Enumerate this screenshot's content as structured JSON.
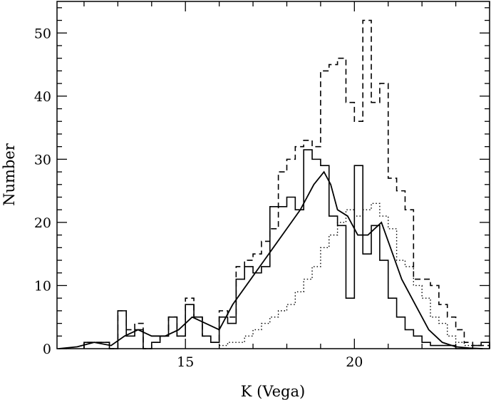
{
  "chart_data": {
    "type": "line",
    "title": "",
    "xlabel": "K (Vega)",
    "ylabel": "Number",
    "xlim": [
      11.2,
      24.0
    ],
    "ylim": [
      0,
      55
    ],
    "xticks": [
      15,
      20
    ],
    "yticks": [
      0,
      10,
      20,
      30,
      40,
      50
    ],
    "grid": false,
    "legend": "none",
    "bin_width": 0.25,
    "series": [
      {
        "style": "histogram-solid",
        "bin_edges": [
          12.0,
          12.25,
          12.5,
          12.75,
          13.0,
          13.25,
          13.5,
          13.75,
          14.0,
          14.25,
          14.5,
          14.75,
          15.0,
          15.25,
          15.5,
          15.75,
          16.0,
          16.25,
          16.5,
          16.75,
          17.0,
          17.25,
          17.5,
          17.75,
          18.0,
          18.25,
          18.5,
          18.75,
          19.0,
          19.25,
          19.5,
          19.75,
          20.0,
          20.25,
          20.5,
          20.75,
          21.0,
          21.25,
          21.5,
          21.75,
          22.0,
          22.25,
          22.5,
          22.75,
          23.0,
          23.25,
          23.5,
          23.75,
          24.0
        ],
        "values": [
          1,
          1,
          1,
          0,
          6,
          2,
          3,
          0,
          1,
          2,
          5,
          2,
          7,
          5,
          2,
          1,
          5,
          4,
          11,
          13,
          12,
          13,
          22.5,
          22.5,
          24,
          22,
          31.5,
          30,
          29,
          21,
          19.5,
          8,
          29,
          15,
          19.5,
          14,
          8,
          5,
          3,
          2,
          1,
          0.5,
          0.5,
          0.5,
          0,
          0,
          0.5,
          1
        ]
      },
      {
        "style": "histogram-dashed",
        "bin_edges": [
          12.0,
          12.25,
          12.5,
          12.75,
          13.0,
          13.25,
          13.5,
          13.75,
          14.0,
          14.25,
          14.5,
          14.75,
          15.0,
          15.25,
          15.5,
          15.75,
          16.0,
          16.25,
          16.5,
          16.75,
          17.0,
          17.25,
          17.5,
          17.75,
          18.0,
          18.25,
          18.5,
          18.75,
          19.0,
          19.25,
          19.5,
          19.75,
          20.0,
          20.25,
          20.5,
          20.75,
          21.0,
          21.25,
          21.5,
          21.75,
          22.0,
          22.25,
          22.5,
          22.75,
          23.0,
          23.25,
          23.5,
          23.75,
          24.0
        ],
        "values": [
          1,
          1,
          1,
          0,
          6,
          3,
          4,
          0,
          1,
          2,
          5,
          2,
          8,
          5,
          2,
          1,
          6,
          5,
          13,
          14,
          15,
          17,
          19,
          28,
          30,
          32,
          33,
          32,
          44,
          45,
          46,
          39,
          36,
          52,
          39,
          42,
          27,
          25,
          22,
          11,
          11,
          10,
          7,
          5,
          3,
          1,
          0.5,
          0.5
        ]
      },
      {
        "style": "histogram-dotted",
        "bin_edges": [
          16.0,
          16.25,
          16.5,
          16.75,
          17.0,
          17.25,
          17.5,
          17.75,
          18.0,
          18.25,
          18.5,
          18.75,
          19.0,
          19.25,
          19.5,
          19.75,
          20.0,
          20.25,
          20.5,
          20.75,
          21.0,
          21.25,
          21.5,
          21.75,
          22.0,
          22.25,
          22.5,
          22.75,
          23.0,
          23.25,
          23.5
        ],
        "values": [
          0.5,
          1,
          1,
          2,
          3,
          4,
          5,
          6,
          7,
          9,
          11,
          13,
          16,
          18,
          20,
          22,
          21,
          22,
          23,
          21,
          19,
          14,
          13,
          10,
          8,
          5,
          4,
          2,
          1,
          0.5
        ]
      },
      {
        "style": "curve-solid",
        "x": [
          11.25,
          11.8,
          12.3,
          12.8,
          13.2,
          13.6,
          14.0,
          14.4,
          14.8,
          15.2,
          15.6,
          16.0,
          16.4,
          16.8,
          17.2,
          17.6,
          18.0,
          18.4,
          18.8,
          19.1,
          19.3,
          19.5,
          19.8,
          20.1,
          20.4,
          20.8,
          21.0,
          21.4,
          21.8,
          22.2,
          22.6,
          23.0,
          23.4,
          23.8
        ],
        "y": [
          0,
          0.3,
          1,
          0.5,
          2,
          3,
          2,
          2,
          3,
          5,
          4,
          3,
          7,
          10,
          13,
          16,
          19,
          22,
          26,
          28,
          26,
          22,
          21,
          18,
          18,
          20,
          17,
          11,
          7,
          3,
          1,
          0.3,
          0.1,
          0
        ]
      }
    ]
  }
}
